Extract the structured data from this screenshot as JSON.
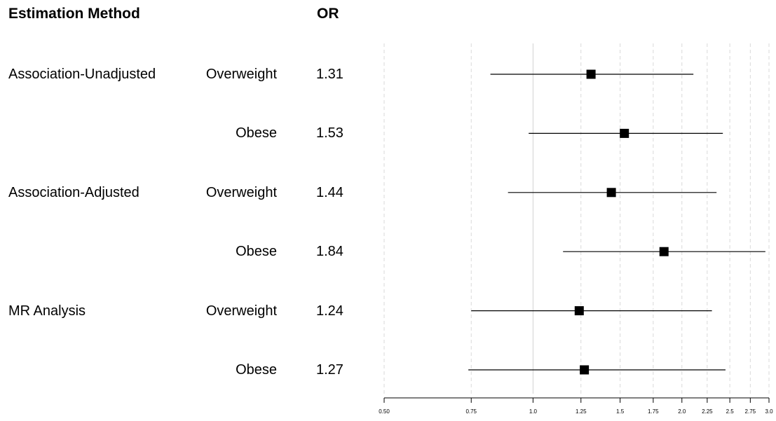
{
  "headers": {
    "method": "Estimation Method",
    "or": "OR"
  },
  "chart_data": {
    "type": "forest",
    "x_scale": "log",
    "xlim": [
      0.5,
      3.0
    ],
    "grid": true,
    "x_ticks": [
      0.5,
      0.75,
      1.0,
      1.25,
      1.5,
      1.75,
      2.0,
      2.25,
      2.5,
      2.75,
      3.0
    ],
    "x_tick_labels": [
      "0.50",
      "0.75",
      "1.0",
      "1.25",
      "1.5",
      "1.75",
      "2.0",
      "2.25",
      "2.5",
      "2.75",
      "3.0"
    ],
    "rows": [
      {
        "method": "Association-Unadjusted",
        "group": "Overweight",
        "or_label": "1.31",
        "or": 1.31,
        "lower": 0.82,
        "upper": 2.11
      },
      {
        "method": "",
        "group": "Obese",
        "or_label": "1.53",
        "or": 1.53,
        "lower": 0.98,
        "upper": 2.42
      },
      {
        "method": "Association-Adjusted",
        "group": "Overweight",
        "or_label": "1.44",
        "or": 1.44,
        "lower": 0.89,
        "upper": 2.35
      },
      {
        "method": "",
        "group": "Obese",
        "or_label": "1.84",
        "or": 1.84,
        "lower": 1.15,
        "upper": 2.95
      },
      {
        "method": "MR Analysis",
        "group": "Overweight",
        "or_label": "1.24",
        "or": 1.24,
        "lower": 0.75,
        "upper": 2.3
      },
      {
        "method": "",
        "group": "Obese",
        "or_label": "1.27",
        "or": 1.27,
        "lower": 0.74,
        "upper": 2.45
      }
    ]
  }
}
